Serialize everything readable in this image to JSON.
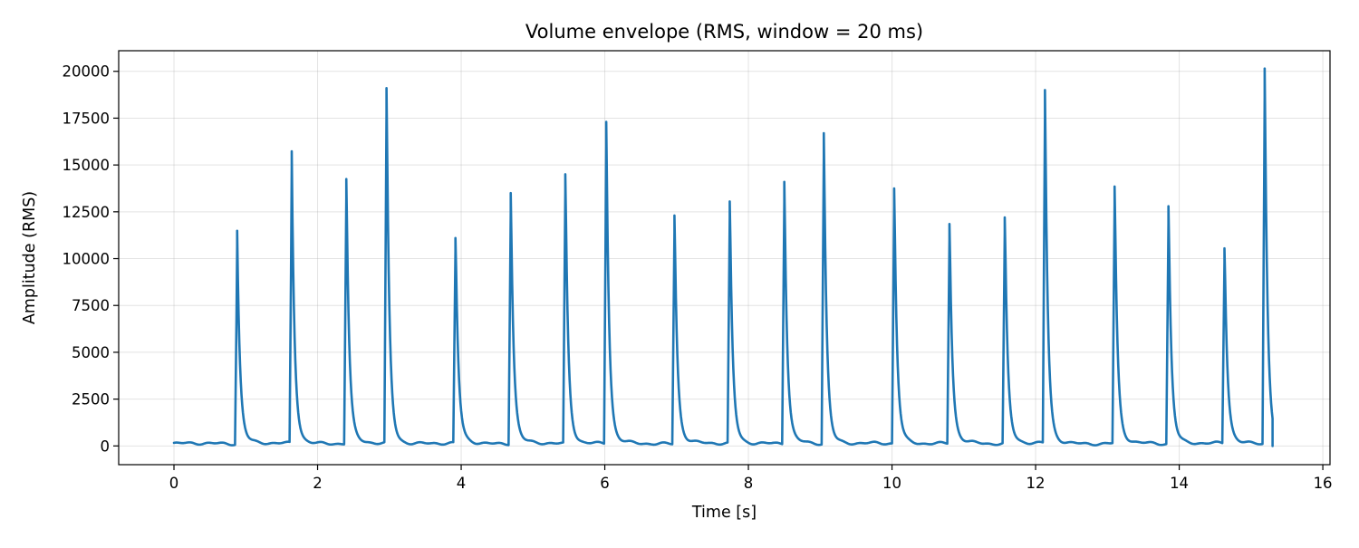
{
  "chart_data": {
    "type": "line",
    "title": "Volume envelope (RMS, window = 20 ms)",
    "xlabel": "Time [s]",
    "ylabel": "Amplitude (RMS)",
    "xlim": [
      -0.77,
      16.1
    ],
    "ylim": [
      -1000,
      21100
    ],
    "grid": true,
    "legend": "none",
    "x_ticks": [
      0,
      2,
      4,
      6,
      8,
      10,
      12,
      14,
      16
    ],
    "x_tick_labels": [
      "0",
      "2",
      "4",
      "6",
      "8",
      "10",
      "12",
      "14",
      "16"
    ],
    "y_ticks": [
      0,
      2500,
      5000,
      7500,
      10000,
      12500,
      15000,
      17500,
      20000
    ],
    "y_tick_labels": [
      "0",
      "2500",
      "5000",
      "7500",
      "10000",
      "12500",
      "15000",
      "17500",
      "20000"
    ],
    "series": [
      {
        "color": "#1f77b4",
        "baseline": 130,
        "end_time": 15.3,
        "peaks": [
          {
            "t": 0.88,
            "v": 10700
          },
          {
            "t": 1.64,
            "v": 14850
          },
          {
            "t": 2.4,
            "v": 14250
          },
          {
            "t": 2.96,
            "v": 19100
          },
          {
            "t": 3.92,
            "v": 11100
          },
          {
            "t": 4.69,
            "v": 13500
          },
          {
            "t": 5.45,
            "v": 14500
          },
          {
            "t": 6.02,
            "v": 17300
          },
          {
            "t": 6.97,
            "v": 12300
          },
          {
            "t": 7.74,
            "v": 13050
          },
          {
            "t": 8.5,
            "v": 14100
          },
          {
            "t": 9.05,
            "v": 16700
          },
          {
            "t": 10.03,
            "v": 13750
          },
          {
            "t": 10.8,
            "v": 11850
          },
          {
            "t": 11.57,
            "v": 12200
          },
          {
            "t": 12.13,
            "v": 19000
          },
          {
            "t": 13.1,
            "v": 13850
          },
          {
            "t": 13.85,
            "v": 12800
          },
          {
            "t": 14.63,
            "v": 10550
          },
          {
            "t": 15.19,
            "v": 20150
          }
        ]
      }
    ]
  }
}
